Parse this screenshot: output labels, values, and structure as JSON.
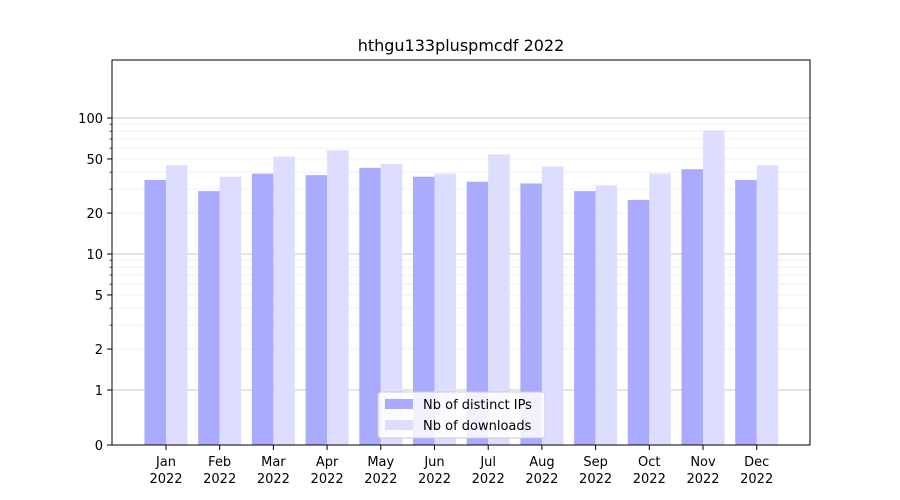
{
  "chart_data": {
    "type": "bar",
    "title": "hthgu133pluspmcdf 2022",
    "xlabel": "",
    "ylabel": "",
    "yscale": "symlog",
    "ylim": [
      0,
      120
    ],
    "grid": "y (major and minor)",
    "legend_position": "bottom-center",
    "categories": [
      {
        "month": "Jan",
        "year": "2022"
      },
      {
        "month": "Feb",
        "year": "2022"
      },
      {
        "month": "Mar",
        "year": "2022"
      },
      {
        "month": "Apr",
        "year": "2022"
      },
      {
        "month": "May",
        "year": "2022"
      },
      {
        "month": "Jun",
        "year": "2022"
      },
      {
        "month": "Jul",
        "year": "2022"
      },
      {
        "month": "Aug",
        "year": "2022"
      },
      {
        "month": "Sep",
        "year": "2022"
      },
      {
        "month": "Oct",
        "year": "2022"
      },
      {
        "month": "Nov",
        "year": "2022"
      },
      {
        "month": "Dec",
        "year": "2022"
      }
    ],
    "series": [
      {
        "name": "Nb of distinct IPs",
        "color": "#aaaaff",
        "values": [
          35,
          29,
          39,
          38,
          43,
          37,
          34,
          33,
          29,
          25,
          42,
          35
        ]
      },
      {
        "name": "Nb of downloads",
        "color": "#ddddff",
        "values": [
          45,
          37,
          52,
          58,
          46,
          39,
          54,
          44,
          32,
          39,
          81,
          45
        ]
      }
    ],
    "yticks": [
      {
        "value": 0,
        "label": "0"
      },
      {
        "value": 1,
        "label": "1"
      },
      {
        "value": 2,
        "label": "2"
      },
      {
        "value": 5,
        "label": "5"
      },
      {
        "value": 10,
        "label": "10"
      },
      {
        "value": 20,
        "label": "20"
      },
      {
        "value": 50,
        "label": "50"
      },
      {
        "value": 100,
        "label": "100"
      }
    ]
  }
}
